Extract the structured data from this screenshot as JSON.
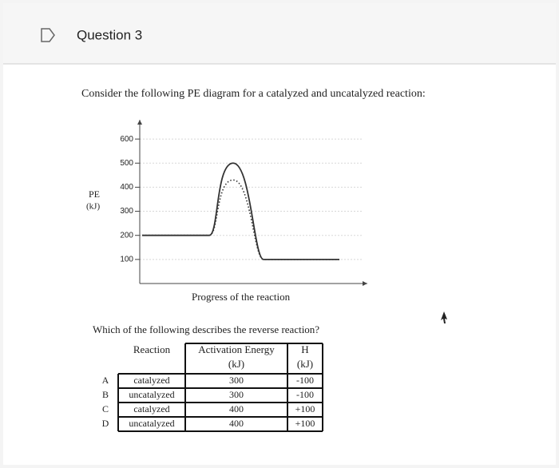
{
  "header": {
    "title": "Question 3"
  },
  "prompt": "Consider the following PE diagram for a catalyzed and uncatalyzed reaction:",
  "chart_data": {
    "type": "line",
    "ylabel": [
      "PE",
      "(kJ)"
    ],
    "xlabel": "Progress of the reaction",
    "categories": [
      null,
      null,
      null,
      null,
      null
    ],
    "series": [
      {
        "color": "#333333",
        "values": [
          200,
          200,
          500,
          100,
          100
        ]
      },
      {
        "color": "#333333",
        "dash": true,
        "values": [
          200,
          200,
          430,
          100,
          100
        ]
      }
    ],
    "ylim": [
      0,
      680
    ],
    "yticks": [
      100,
      200,
      300,
      400,
      500,
      600
    ],
    "grid": true
  },
  "question": "Which of the following describes the reverse reaction?",
  "table": {
    "header": [
      [
        "Reaction"
      ],
      [
        "Activation Energy",
        "(kJ)"
      ],
      [
        "H",
        "(kJ)"
      ]
    ],
    "rows": [
      [
        "A",
        "catalyzed",
        "300",
        "-100"
      ],
      [
        "B",
        "uncatalyzed",
        "300",
        "-100"
      ],
      [
        "C",
        "catalyzed",
        "400",
        "+100"
      ],
      [
        "D",
        "uncatalyzed",
        "400",
        "+100"
      ]
    ]
  }
}
